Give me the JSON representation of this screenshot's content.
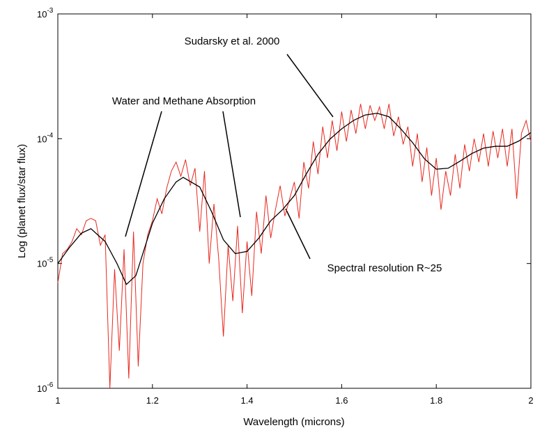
{
  "chart_data": {
    "type": "line",
    "xlabel": "Wavelength (microns)",
    "ylabel": "Log (planet flux/star flux)",
    "log_y": true,
    "xlim": [
      1,
      2
    ],
    "xticks": [
      1,
      1.2,
      1.4,
      1.6,
      1.8,
      2
    ],
    "ylim": [
      1e-06,
      0.001
    ],
    "yticks": [
      {
        "value": 1e-06,
        "label": "10",
        "exponent": "-6"
      },
      {
        "value": 1e-05,
        "label": "10",
        "exponent": "-5"
      },
      {
        "value": 0.0001,
        "label": "10",
        "exponent": "-4"
      },
      {
        "value": 0.001,
        "label": "10",
        "exponent": "-3"
      }
    ],
    "annotations": [
      "Sudarsky et al. 2000",
      "Water and Methane Absorption",
      "Spectral resolution R~25"
    ],
    "series": [
      {
        "color": "#e8281e",
        "x": [
          1.0,
          1.01,
          1.02,
          1.03,
          1.04,
          1.05,
          1.06,
          1.07,
          1.08,
          1.09,
          1.1,
          1.11,
          1.12,
          1.13,
          1.14,
          1.15,
          1.16,
          1.17,
          1.18,
          1.19,
          1.2,
          1.21,
          1.22,
          1.23,
          1.24,
          1.25,
          1.26,
          1.27,
          1.28,
          1.29,
          1.3,
          1.31,
          1.32,
          1.33,
          1.34,
          1.35,
          1.36,
          1.37,
          1.38,
          1.39,
          1.4,
          1.41,
          1.42,
          1.43,
          1.44,
          1.45,
          1.46,
          1.47,
          1.48,
          1.49,
          1.5,
          1.51,
          1.52,
          1.53,
          1.54,
          1.55,
          1.56,
          1.57,
          1.58,
          1.59,
          1.6,
          1.61,
          1.62,
          1.63,
          1.64,
          1.65,
          1.66,
          1.67,
          1.68,
          1.69,
          1.7,
          1.71,
          1.72,
          1.73,
          1.74,
          1.75,
          1.76,
          1.77,
          1.78,
          1.79,
          1.8,
          1.81,
          1.82,
          1.83,
          1.84,
          1.85,
          1.86,
          1.87,
          1.88,
          1.89,
          1.9,
          1.91,
          1.92,
          1.93,
          1.94,
          1.95,
          1.96,
          1.97,
          1.98,
          1.99,
          2.0
        ],
        "values": [
          7e-06,
          1.2e-05,
          1.3e-05,
          1.5e-05,
          1.9e-05,
          1.7e-05,
          2.2e-05,
          2.3e-05,
          2.2e-05,
          1.4e-05,
          1.7e-05,
          1e-06,
          9e-06,
          2e-06,
          1.3e-05,
          1.2e-06,
          1.8e-05,
          1.5e-06,
          1e-05,
          1.7e-05,
          2.2e-05,
          3.3e-05,
          2.5e-05,
          4e-05,
          5.5e-05,
          6.5e-05,
          5e-05,
          6.8e-05,
          4.2e-05,
          5.8e-05,
          1.8e-05,
          5.5e-05,
          1e-05,
          3e-05,
          1.1e-05,
          2.6e-06,
          1.4e-05,
          5e-06,
          2e-05,
          4e-06,
          1.5e-05,
          5.5e-06,
          2.6e-05,
          1.2e-05,
          3.5e-05,
          1.6e-05,
          2.7e-05,
          4.2e-05,
          2.4e-05,
          3.3e-05,
          4.5e-05,
          2.3e-05,
          6.5e-05,
          4e-05,
          9.5e-05,
          5.2e-05,
          0.000125,
          7e-05,
          0.00014,
          8e-05,
          0.000165,
          9.5e-05,
          0.00017,
          0.00011,
          0.00019,
          0.00012,
          0.000185,
          0.00014,
          0.00018,
          0.00012,
          0.00019,
          0.000105,
          0.00015,
          9e-05,
          0.000125,
          6e-05,
          0.00011,
          4.5e-05,
          8.5e-05,
          3.5e-05,
          7e-05,
          2.7e-05,
          5.5e-05,
          3.5e-05,
          7.5e-05,
          4e-05,
          9e-05,
          5.5e-05,
          0.0001,
          6.5e-05,
          0.00011,
          6e-05,
          0.000115,
          7e-05,
          0.00012,
          6e-05,
          0.00012,
          3.3e-05,
          0.00011,
          0.00014,
          9.5e-05
        ]
      },
      {
        "color": "#000000",
        "x": [
          1.0,
          1.025,
          1.05,
          1.07,
          1.1,
          1.125,
          1.145,
          1.165,
          1.2,
          1.225,
          1.25,
          1.265,
          1.3,
          1.325,
          1.35,
          1.375,
          1.4,
          1.425,
          1.45,
          1.475,
          1.5,
          1.525,
          1.55,
          1.575,
          1.6,
          1.625,
          1.65,
          1.675,
          1.7,
          1.725,
          1.75,
          1.775,
          1.8,
          1.825,
          1.85,
          1.875,
          1.9,
          1.925,
          1.95,
          1.975,
          2.0
        ],
        "values": [
          1e-05,
          1.35e-05,
          1.75e-05,
          1.9e-05,
          1.5e-05,
          1e-05,
          6.8e-06,
          8e-06,
          2.1e-05,
          3.3e-05,
          4.5e-05,
          4.9e-05,
          4.1e-05,
          2.6e-05,
          1.55e-05,
          1.2e-05,
          1.25e-05,
          1.6e-05,
          2.2e-05,
          2.7e-05,
          3.5e-05,
          5.2e-05,
          7.5e-05,
          9.9e-05,
          0.00012,
          0.00014,
          0.000155,
          0.00016,
          0.00015,
          0.00012,
          9.3e-05,
          6.9e-05,
          5.7e-05,
          5.8e-05,
          6.6e-05,
          7.6e-05,
          8.4e-05,
          8.7e-05,
          8.7e-05,
          9.6e-05,
          0.000112
        ]
      }
    ]
  }
}
